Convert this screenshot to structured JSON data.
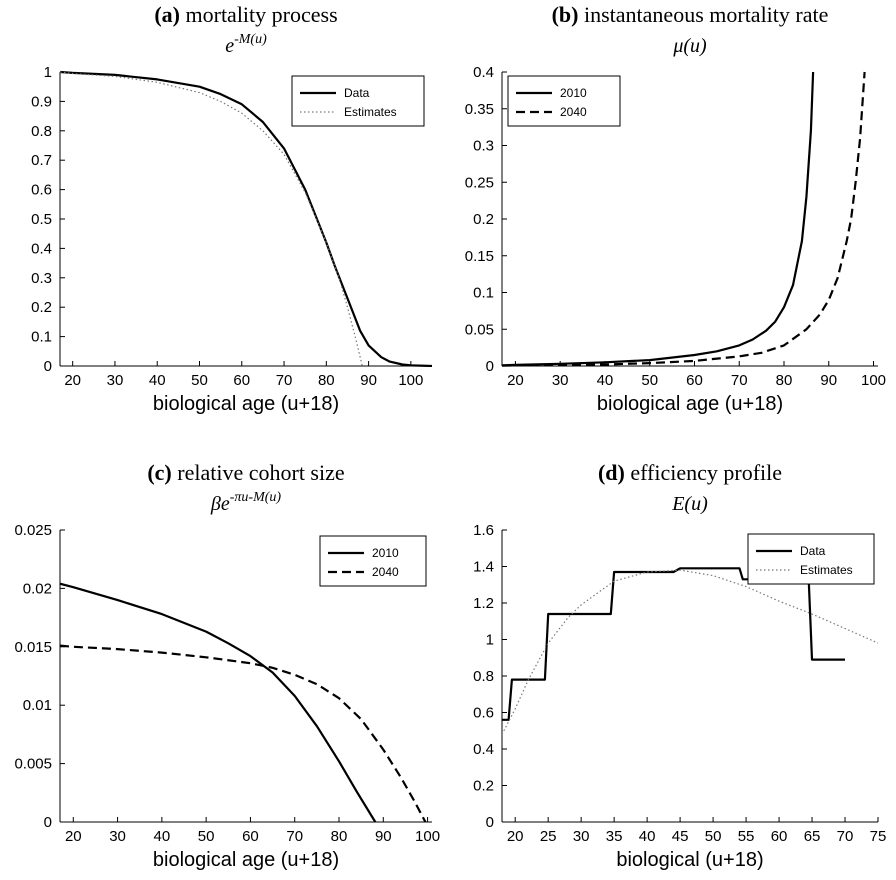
{
  "chart_data": [
    {
      "id": "a",
      "type": "line",
      "title_tag": "(a)",
      "title_text": "mortality process",
      "subtitle": "e^{-M(u)}",
      "xlabel": "biological age (u+18)",
      "ylabel": "",
      "xlim": [
        17,
        105
      ],
      "ylim": [
        0,
        1
      ],
      "xticks": [
        20,
        30,
        40,
        50,
        60,
        70,
        80,
        90,
        100
      ],
      "yticks": [
        0,
        0.1,
        0.2,
        0.3,
        0.4,
        0.5,
        0.6,
        0.7,
        0.8,
        0.9,
        1
      ],
      "ytick_labels": [
        "0",
        "0.1",
        "0.2",
        "0.3",
        "0.4",
        "0.5",
        "0.6",
        "0.7",
        "0.8",
        "0.9",
        "1"
      ],
      "legend_position": "top-right",
      "series": [
        {
          "name": "Data",
          "style": "solid",
          "x": [
            17,
            20,
            30,
            40,
            50,
            55,
            60,
            65,
            70,
            75,
            80,
            82,
            85,
            88,
            90,
            93,
            95,
            98,
            100,
            105
          ],
          "y": [
            1.0,
            0.997,
            0.99,
            0.975,
            0.95,
            0.925,
            0.89,
            0.83,
            0.74,
            0.6,
            0.42,
            0.34,
            0.23,
            0.12,
            0.07,
            0.03,
            0.015,
            0.005,
            0.002,
            0
          ]
        },
        {
          "name": "Estimates",
          "style": "dotted",
          "x": [
            17,
            20,
            30,
            40,
            50,
            55,
            60,
            65,
            70,
            75,
            80,
            83,
            85,
            87,
            88.5
          ],
          "y": [
            1.0,
            0.995,
            0.985,
            0.965,
            0.93,
            0.9,
            0.86,
            0.8,
            0.72,
            0.59,
            0.42,
            0.3,
            0.2,
            0.09,
            0
          ]
        }
      ]
    },
    {
      "id": "b",
      "type": "line",
      "title_tag": "(b)",
      "title_text": "instantaneous mortality rate",
      "subtitle": "μ(u)",
      "xlabel": "biological age (u+18)",
      "ylabel": "",
      "xlim": [
        17,
        101
      ],
      "ylim": [
        0,
        0.4
      ],
      "xticks": [
        20,
        30,
        40,
        50,
        60,
        70,
        80,
        90,
        100
      ],
      "yticks": [
        0,
        0.05,
        0.1,
        0.15,
        0.2,
        0.25,
        0.3,
        0.35,
        0.4
      ],
      "ytick_labels": [
        "0",
        "0.05",
        "0.1",
        "0.15",
        "0.2",
        "0.25",
        "0.3",
        "0.35",
        "0.4"
      ],
      "legend_position": "top-left",
      "series": [
        {
          "name": "2010",
          "style": "solid",
          "x": [
            17,
            20,
            30,
            40,
            50,
            60,
            65,
            70,
            73,
            76,
            78,
            80,
            82,
            84,
            85,
            86,
            86.5
          ],
          "y": [
            0.001,
            0.0015,
            0.003,
            0.005,
            0.008,
            0.015,
            0.02,
            0.028,
            0.036,
            0.048,
            0.06,
            0.08,
            0.11,
            0.17,
            0.23,
            0.32,
            0.4
          ]
        },
        {
          "name": "2040",
          "style": "dashed",
          "x": [
            17,
            20,
            30,
            40,
            50,
            60,
            70,
            75,
            80,
            85,
            88,
            90,
            92,
            94,
            95,
            96,
            97,
            98
          ],
          "y": [
            0.0005,
            0.0008,
            0.0015,
            0.002,
            0.004,
            0.007,
            0.013,
            0.018,
            0.028,
            0.05,
            0.07,
            0.09,
            0.12,
            0.17,
            0.2,
            0.25,
            0.31,
            0.4
          ]
        }
      ]
    },
    {
      "id": "c",
      "type": "line",
      "title_tag": "(c)",
      "title_text": "relative cohort size",
      "subtitle": "βe^{-πu-M(u)}",
      "xlabel": "biological age (u+18)",
      "ylabel": "",
      "xlim": [
        17,
        101
      ],
      "ylim": [
        0,
        0.025
      ],
      "xticks": [
        20,
        30,
        40,
        50,
        60,
        70,
        80,
        90,
        100
      ],
      "yticks": [
        0,
        0.005,
        0.01,
        0.015,
        0.02,
        0.025
      ],
      "ytick_labels": [
        "0",
        "0.005",
        "0.01",
        "0.015",
        "0.02",
        "0.025"
      ],
      "legend_position": "top-right",
      "series": [
        {
          "name": "2010",
          "style": "solid",
          "x": [
            17,
            20,
            30,
            40,
            50,
            55,
            60,
            65,
            70,
            75,
            80,
            84,
            88.2
          ],
          "y": [
            0.0204,
            0.0201,
            0.019,
            0.0178,
            0.0163,
            0.0153,
            0.0142,
            0.0128,
            0.0108,
            0.0082,
            0.0052,
            0.0026,
            0
          ]
        },
        {
          "name": "2040",
          "style": "dashed",
          "x": [
            17,
            20,
            30,
            40,
            50,
            60,
            65,
            70,
            75,
            80,
            85,
            90,
            94,
            97,
            99.5
          ],
          "y": [
            0.0151,
            0.015,
            0.0148,
            0.0145,
            0.0141,
            0.0136,
            0.0132,
            0.0126,
            0.0118,
            0.0106,
            0.0088,
            0.0062,
            0.0038,
            0.0018,
            0
          ]
        }
      ]
    },
    {
      "id": "d",
      "type": "line",
      "title_tag": "(d)",
      "title_text": "efficiency profile",
      "subtitle": "E(u)",
      "xlabel": "biological (u+18)",
      "ylabel": "",
      "xlim": [
        18,
        75
      ],
      "ylim": [
        0,
        1.6
      ],
      "xticks": [
        20,
        25,
        30,
        35,
        40,
        45,
        50,
        55,
        60,
        65,
        70,
        75
      ],
      "yticks": [
        0,
        0.2,
        0.4,
        0.6,
        0.8,
        1,
        1.2,
        1.4,
        1.6
      ],
      "ytick_labels": [
        "0",
        "0.2",
        "0.4",
        "0.6",
        "0.8",
        "1",
        "1.2",
        "1.4",
        "1.6"
      ],
      "legend_position": "top-right",
      "series": [
        {
          "name": "Data",
          "style": "solid",
          "x": [
            18,
            19,
            19.5,
            22,
            22.5,
            24.5,
            25,
            34.5,
            35,
            44,
            45,
            54,
            54.5,
            64.5,
            65,
            70
          ],
          "y": [
            0.56,
            0.56,
            0.78,
            0.78,
            0.78,
            0.78,
            1.14,
            1.14,
            1.37,
            1.37,
            1.39,
            1.39,
            1.33,
            1.33,
            0.89,
            0.89
          ]
        },
        {
          "name": "Estimates",
          "style": "dotted",
          "x": [
            18,
            20,
            22,
            25,
            28,
            30,
            35,
            40,
            45,
            50,
            55,
            60,
            65,
            70,
            75
          ],
          "y": [
            0.48,
            0.62,
            0.78,
            0.98,
            1.12,
            1.19,
            1.32,
            1.37,
            1.38,
            1.35,
            1.29,
            1.21,
            1.14,
            1.06,
            0.98
          ]
        }
      ]
    }
  ]
}
